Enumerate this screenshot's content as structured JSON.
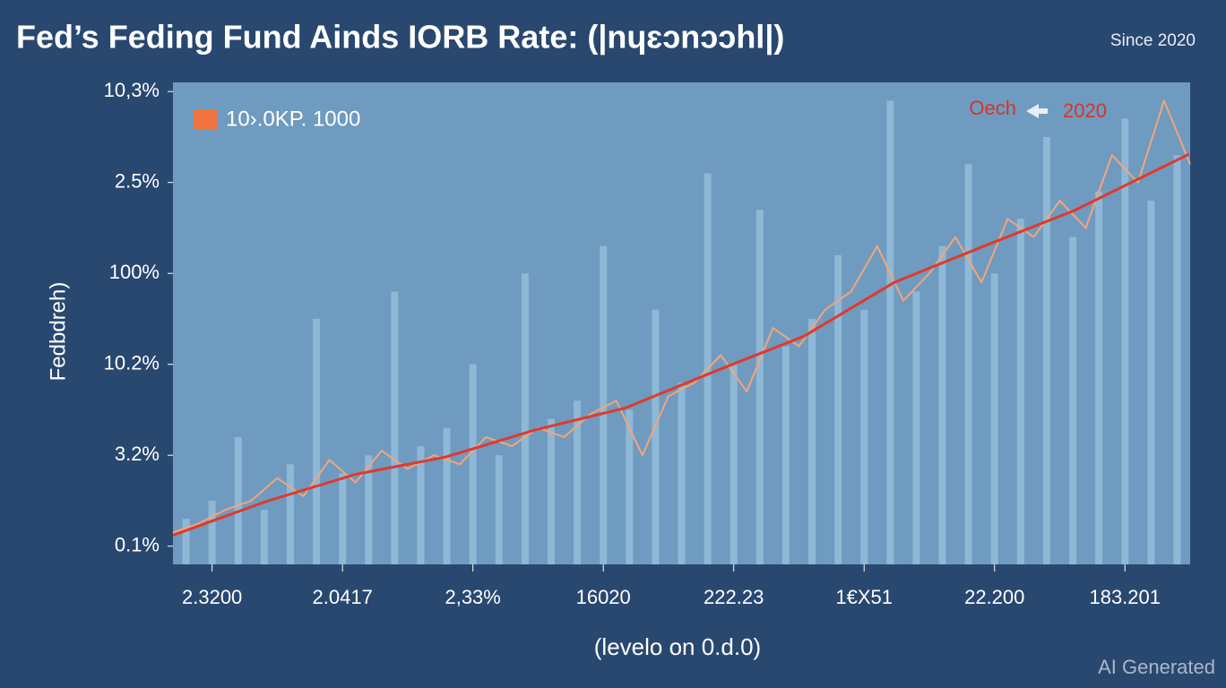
{
  "chart_data": {
    "type": "line",
    "title": "Fed’s Feding Fund Ainds IORB Rate: (|nɥɛɔnɔɔhl|)",
    "subtitle": "Since 2020",
    "y_label": "Fedbdreh)",
    "x_label": "(levelo on 0.d.0)",
    "annotation": "2020",
    "watermark": "AI Generated",
    "xlim": [
      -0.3,
      7.5
    ],
    "ylim": [
      -0.2,
      5.1
    ],
    "xticks": [
      {
        "value": 0,
        "label": "2.3200"
      },
      {
        "value": 1,
        "label": "2.0417"
      },
      {
        "value": 2,
        "label": "2,33%"
      },
      {
        "value": 3,
        "label": "16020"
      },
      {
        "value": 4,
        "label": "222.23"
      },
      {
        "value": 5,
        "label": "1€X51"
      },
      {
        "value": 6,
        "label": "22.200"
      },
      {
        "value": 7,
        "label": "183.201"
      }
    ],
    "yticks": [
      {
        "value": 0,
        "label": "0.1%"
      },
      {
        "value": 1,
        "label": "3.2%"
      },
      {
        "value": 2,
        "label": "10.2%"
      },
      {
        "value": 3,
        "label": "100%"
      },
      {
        "value": 4,
        "label": "2.5%"
      },
      {
        "value": 5,
        "label": "10,3%"
      }
    ],
    "series": [
      {
        "color": "#a9d0ea",
        "style": "bars",
        "x": [
          -0.2,
          0,
          0.2,
          0.4,
          0.6,
          0.8,
          1,
          1.2,
          1.4,
          1.6,
          1.8,
          2,
          2.2,
          2.4,
          2.6,
          2.8,
          3,
          3.2,
          3.4,
          3.6,
          3.8,
          4,
          4.2,
          4.4,
          4.6,
          4.8,
          5,
          5.2,
          5.4,
          5.6,
          5.8,
          6,
          6.2,
          6.4,
          6.6,
          6.8,
          7,
          7.2,
          7.4
        ],
        "values": [
          0.3,
          0.5,
          1.2,
          0.4,
          0.9,
          2.5,
          0.8,
          1.0,
          2.8,
          1.1,
          1.3,
          2.0,
          1.0,
          3.0,
          1.4,
          1.6,
          3.3,
          1.5,
          2.6,
          1.8,
          4.1,
          2.0,
          3.7,
          2.2,
          2.5,
          3.2,
          2.6,
          4.9,
          2.8,
          3.3,
          4.2,
          3.0,
          3.6,
          4.5,
          3.4,
          3.9,
          4.7,
          3.8,
          4.3
        ]
      },
      {
        "name": "10›.0KP. 1000",
        "color": "#f2a679",
        "style": "line",
        "x": [
          -0.3,
          -0.1,
          0.1,
          0.3,
          0.5,
          0.7,
          0.9,
          1.1,
          1.3,
          1.5,
          1.7,
          1.9,
          2.1,
          2.3,
          2.5,
          2.7,
          2.9,
          3.1,
          3.3,
          3.5,
          3.7,
          3.9,
          4.1,
          4.3,
          4.5,
          4.7,
          4.9,
          5.1,
          5.3,
          5.5,
          5.7,
          5.9,
          6.1,
          6.3,
          6.5,
          6.7,
          6.9,
          7.1,
          7.3,
          7.5
        ],
        "values": [
          0.15,
          0.25,
          0.4,
          0.5,
          0.75,
          0.55,
          0.95,
          0.7,
          1.05,
          0.85,
          1.0,
          0.9,
          1.2,
          1.1,
          1.3,
          1.2,
          1.45,
          1.6,
          1.0,
          1.65,
          1.8,
          2.1,
          1.7,
          2.4,
          2.2,
          2.6,
          2.8,
          3.3,
          2.7,
          3.0,
          3.4,
          2.9,
          3.6,
          3.4,
          3.8,
          3.5,
          4.3,
          4.0,
          4.9,
          4.2
        ]
      },
      {
        "name": "Oech",
        "color": "#e0392c",
        "style": "line",
        "x": [
          -0.3,
          0.41,
          1.1,
          1.79,
          2.48,
          3.17,
          3.85,
          4.54,
          5.23,
          5.92,
          6.61,
          7.49
        ],
        "values": [
          0.12,
          0.49,
          0.79,
          0.98,
          1.28,
          1.52,
          1.92,
          2.31,
          2.9,
          3.3,
          3.69,
          4.31
        ]
      }
    ]
  }
}
